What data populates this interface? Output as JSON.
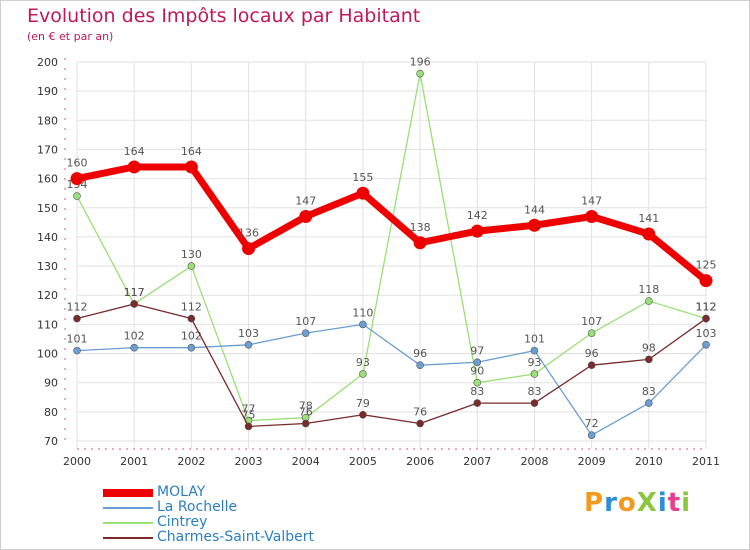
{
  "title": "Evolution des Impôts locaux par Habitant",
  "subtitle": "(en € et par an)",
  "logo": "ProXiti",
  "chart_data": {
    "type": "line",
    "title": "Evolution des Impôts locaux par Habitant",
    "subtitle": "(en € et par an)",
    "xlabel": "",
    "ylabel": "",
    "ylim": [
      70,
      200
    ],
    "yticks": [
      70,
      80,
      90,
      100,
      110,
      120,
      130,
      140,
      150,
      160,
      170,
      180,
      190,
      200
    ],
    "grid": true,
    "legend_position": "bottom-left",
    "x": [
      "2000",
      "2001",
      "2002",
      "2003",
      "2004",
      "2005",
      "2006",
      "2007",
      "2008",
      "2009",
      "2010",
      "2011"
    ],
    "series": [
      {
        "name": "MOLAY",
        "color": "#ee0000",
        "emphasis": true,
        "values": [
          160,
          164,
          164,
          136,
          147,
          155,
          138,
          142,
          144,
          147,
          141,
          125
        ]
      },
      {
        "name": "La Rochelle",
        "color": "#6b9fd3",
        "emphasis": false,
        "values": [
          101,
          102,
          102,
          103,
          107,
          110,
          96,
          97,
          101,
          72,
          83,
          103
        ]
      },
      {
        "name": "Cintrey",
        "color": "#99e076",
        "emphasis": false,
        "values": [
          154,
          117,
          130,
          77,
          78,
          93,
          196,
          90,
          93,
          107,
          118,
          112
        ]
      },
      {
        "name": "Charmes-Saint-Valbert",
        "color": "#7a2a2a",
        "emphasis": false,
        "values": [
          112,
          117,
          112,
          75,
          76,
          79,
          76,
          83,
          83,
          96,
          98,
          112
        ]
      }
    ]
  },
  "colors": {
    "title": "#c2185b",
    "grid": "#e2e2e2",
    "legend_text": "#2d7fc4",
    "axis_text": "#333333",
    "label_text": "#555555",
    "logo_letters": [
      "#f39a1e",
      "#2c8fd6",
      "#f39a1e",
      "#8cc63f",
      "#2c8fd6",
      "#e83e8c",
      "#8cc63f"
    ]
  }
}
